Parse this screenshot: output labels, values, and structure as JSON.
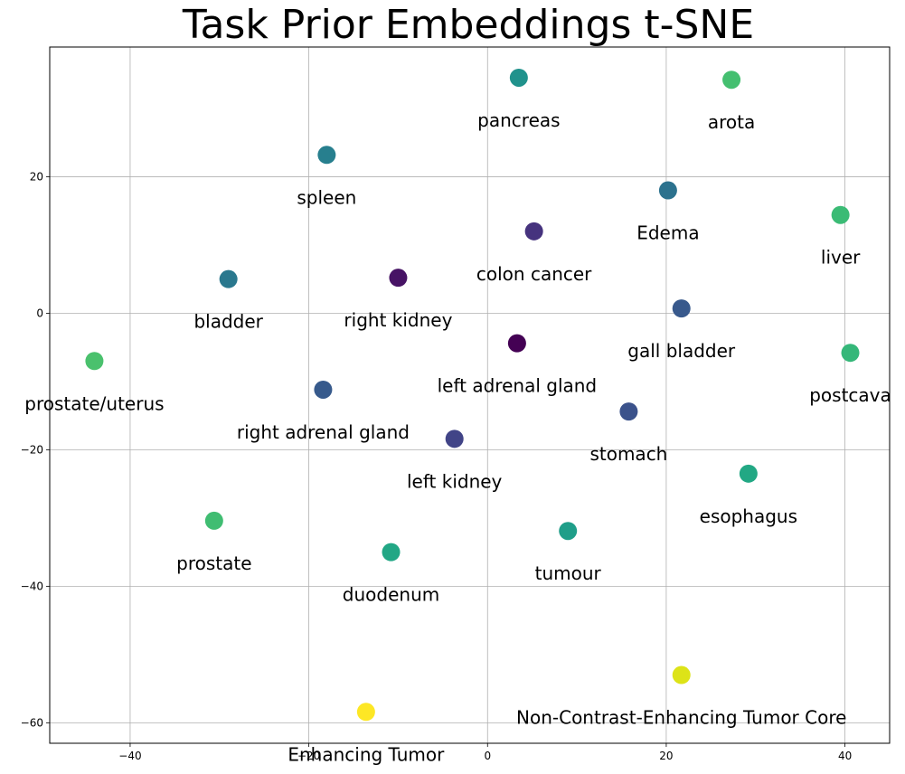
{
  "chart_data": {
    "type": "scatter",
    "title": "Task Prior Embeddings t-SNE",
    "xlabel": "",
    "ylabel": "",
    "xlim": [
      -49,
      45
    ],
    "ylim": [
      -63,
      39
    ],
    "grid": true,
    "x_ticks": [
      -40,
      -20,
      0,
      20,
      40
    ],
    "y_ticks": [
      -60,
      -40,
      -20,
      0,
      20
    ],
    "points": [
      {
        "label": "pancreas",
        "x": 3.5,
        "y": 34.5,
        "color": "#20928c"
      },
      {
        "label": "arota",
        "x": 27.3,
        "y": 34.2,
        "color": "#44bf70"
      },
      {
        "label": "spleen",
        "x": -18.0,
        "y": 23.2,
        "color": "#277f8e"
      },
      {
        "label": "Edema",
        "x": 20.2,
        "y": 18.0,
        "color": "#2c728e"
      },
      {
        "label": "liver",
        "x": 39.5,
        "y": 14.4,
        "color": "#3bbb75"
      },
      {
        "label": "colon cancer",
        "x": 5.2,
        "y": 12.0,
        "color": "#46337e"
      },
      {
        "label": "bladder",
        "x": -29.0,
        "y": 5.0,
        "color": "#2a788e"
      },
      {
        "label": "right kidney",
        "x": -10.0,
        "y": 5.2,
        "color": "#471365"
      },
      {
        "label": "gall bladder",
        "x": 21.7,
        "y": 0.7,
        "color": "#38598c"
      },
      {
        "label": "left adrenal gland",
        "x": 3.3,
        "y": -4.4,
        "color": "#440154"
      },
      {
        "label": "prostate/uterus",
        "x": -44.0,
        "y": -7.0,
        "color": "#4ac16d"
      },
      {
        "label": "postcava",
        "x": 40.6,
        "y": -5.8,
        "color": "#35b779"
      },
      {
        "label": "right adrenal gland",
        "x": -18.4,
        "y": -11.2,
        "color": "#375a8c"
      },
      {
        "label": "stomach",
        "x": 15.8,
        "y": -14.4,
        "color": "#3b528b"
      },
      {
        "label": "left kidney",
        "x": -3.7,
        "y": -18.4,
        "color": "#414487"
      },
      {
        "label": "esophagus",
        "x": 29.2,
        "y": -23.5,
        "color": "#22a884"
      },
      {
        "label": "prostate",
        "x": -30.6,
        "y": -30.4,
        "color": "#40bd72"
      },
      {
        "label": "tumour",
        "x": 9.0,
        "y": -31.9,
        "color": "#1f9e89"
      },
      {
        "label": "duodenum",
        "x": -10.8,
        "y": -35.0,
        "color": "#22a785"
      },
      {
        "label": "Non-Contrast-Enhancing Tumor Core",
        "x": 21.7,
        "y": -53.0,
        "color": "#dde318"
      },
      {
        "label": "Enhancing Tumor",
        "x": -13.6,
        "y": -58.4,
        "color": "#fde725"
      }
    ]
  }
}
